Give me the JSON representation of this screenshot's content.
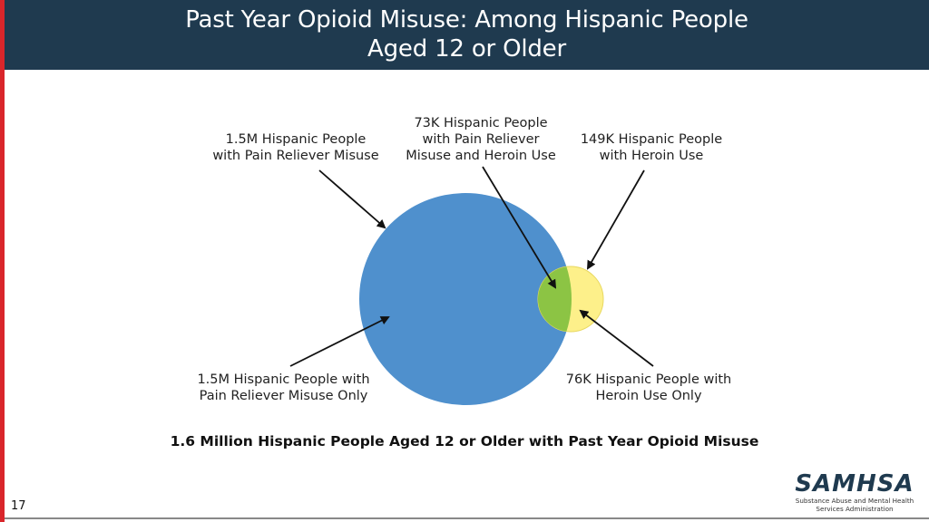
{
  "header": {
    "title_line1": "Past Year Opioid Misuse: Among Hispanic People",
    "title_line2": "Aged 12 or Older"
  },
  "venn": {
    "labels": {
      "pain_reliever_misuse": [
        "1.5M Hispanic People",
        "with Pain Reliever Misuse"
      ],
      "overlap": [
        "73K Hispanic People",
        "with Pain Reliever",
        "Misuse and Heroin Use"
      ],
      "heroin_use": [
        "149K Hispanic People",
        "with Heroin Use"
      ],
      "pain_reliever_only": [
        "1.5M Hispanic People with",
        "Pain Reliever Misuse Only"
      ],
      "heroin_only": [
        "76K Hispanic People with",
        "Heroin Use Only"
      ]
    },
    "colors": {
      "pain_reliever": "#4f90cd",
      "heroin": "#fdf08a",
      "overlap": "#8cc444"
    }
  },
  "caption": "1.6 Million Hispanic People Aged 12 or Older with Past Year Opioid Misuse",
  "footer": {
    "page_number": "17",
    "logo_text": "SAMHSA",
    "logo_subtitle_line1": "Substance Abuse and Mental Health",
    "logo_subtitle_line2": "Services Administration"
  }
}
